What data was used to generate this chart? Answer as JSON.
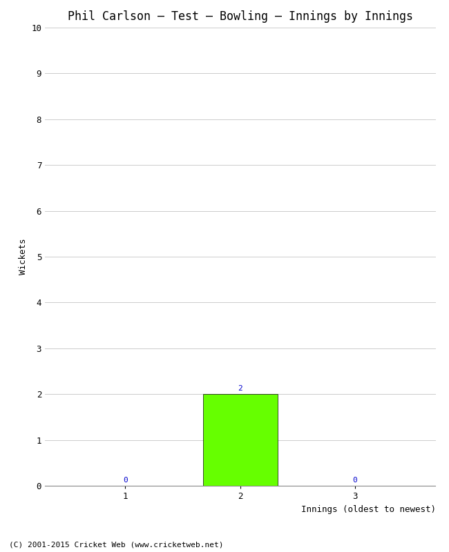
{
  "title": "Phil Carlson – Test – Bowling – Innings by Innings",
  "xlabel": "Innings (oldest to newest)",
  "ylabel": "Wickets",
  "categories": [
    1,
    2,
    3
  ],
  "values": [
    0,
    2,
    0
  ],
  "bar_color": "#66ff00",
  "bar_edge_color": "#000000",
  "ylim": [
    0,
    10
  ],
  "yticks": [
    0,
    1,
    2,
    3,
    4,
    5,
    6,
    7,
    8,
    9,
    10
  ],
  "background_color": "#ffffff",
  "grid_color": "#cccccc",
  "annotation_color": "#0000cc",
  "footer": "(C) 2001-2015 Cricket Web (www.cricketweb.net)",
  "title_fontsize": 12,
  "axis_label_fontsize": 9,
  "tick_fontsize": 9,
  "annotation_fontsize": 8,
  "footer_fontsize": 8
}
